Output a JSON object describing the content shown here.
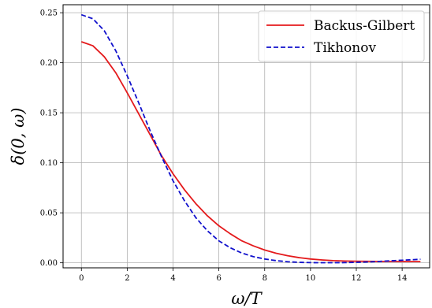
{
  "chart_data": {
    "type": "line",
    "xlabel": "ω/T",
    "ylabel": "δ(0, ω)",
    "xlim": [
      -0.8,
      15.2
    ],
    "ylim": [
      -0.005,
      0.258
    ],
    "x_ticks": [
      0,
      2,
      4,
      6,
      8,
      10,
      12,
      14
    ],
    "y_ticks": [
      0.0,
      0.05,
      0.1,
      0.15,
      0.2,
      0.25
    ],
    "x_tick_labels": [
      "0",
      "2",
      "4",
      "6",
      "8",
      "10",
      "12",
      "14"
    ],
    "y_tick_labels": [
      "0.00",
      "0.05",
      "0.10",
      "0.15",
      "0.20",
      "0.25"
    ],
    "grid": true,
    "legend_position": "top-right",
    "series": [
      {
        "name": "Backus-Gilbert",
        "color": "#e41a1c",
        "style": "solid",
        "x": [
          0,
          0.5,
          1,
          1.5,
          2,
          2.5,
          3,
          3.5,
          4,
          4.5,
          5,
          5.5,
          6,
          6.5,
          7,
          7.5,
          8,
          8.5,
          9,
          9.5,
          10,
          10.5,
          11,
          11.5,
          12,
          12.5,
          13,
          13.5,
          14,
          14.5,
          14.8
        ],
        "y": [
          0.221,
          0.217,
          0.206,
          0.19,
          0.17,
          0.149,
          0.128,
          0.107,
          0.089,
          0.073,
          0.059,
          0.047,
          0.037,
          0.029,
          0.022,
          0.017,
          0.0128,
          0.0096,
          0.0071,
          0.0052,
          0.0038,
          0.0029,
          0.0022,
          0.0018,
          0.0016,
          0.0015,
          0.0014,
          0.0014,
          0.0013,
          0.0013,
          0.0012
        ]
      },
      {
        "name": "Tikhonov",
        "color": "#1111cc",
        "style": "dashed",
        "x": [
          0,
          0.5,
          1,
          1.5,
          2,
          2.5,
          3,
          3.5,
          4,
          4.5,
          5,
          5.5,
          6,
          6.5,
          7,
          7.5,
          8,
          8.5,
          9,
          9.5,
          10,
          10.5,
          11,
          11.5,
          12,
          12.5,
          13,
          13.5,
          14,
          14.5,
          14.8
        ],
        "y": [
          0.248,
          0.244,
          0.232,
          0.212,
          0.187,
          0.16,
          0.132,
          0.106,
          0.082,
          0.062,
          0.045,
          0.032,
          0.022,
          0.015,
          0.0098,
          0.0062,
          0.0038,
          0.0022,
          0.0011,
          0.0005,
          0.0002,
          0.0001,
          0.0001,
          0.0002,
          0.0005,
          0.0009,
          0.0014,
          0.002,
          0.0026,
          0.0032,
          0.0036
        ]
      }
    ]
  }
}
